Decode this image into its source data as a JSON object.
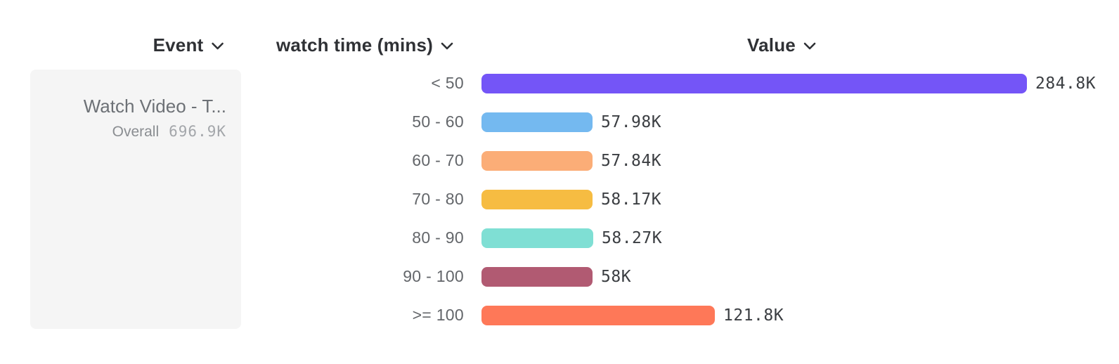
{
  "columns": [
    {
      "label": "Event"
    },
    {
      "label": "watch time (mins)"
    },
    {
      "label": "Value"
    }
  ],
  "event_card": {
    "title": "Watch Video - T...",
    "overall_label": "Overall",
    "overall_value": "696.9K"
  },
  "chart_data": {
    "type": "bar",
    "orientation": "horizontal",
    "title": "",
    "xlabel": "Value",
    "ylabel": "watch time (mins)",
    "grid": false,
    "legend": "none",
    "categories": [
      "< 50",
      "50 - 60",
      "60 - 70",
      "70 - 80",
      "80 - 90",
      "90 - 100",
      ">= 100"
    ],
    "values": [
      284800,
      57980,
      57840,
      58170,
      58270,
      58000,
      121800
    ],
    "value_labels": [
      "284.8K",
      "57.98K",
      "57.84K",
      "58.17K",
      "58.27K",
      "58K",
      "121.8K"
    ],
    "colors": [
      "#7455F7",
      "#74B9F0",
      "#FBAD77",
      "#F6BC42",
      "#7FDFD4",
      "#B15A72",
      "#FE7858"
    ],
    "overall_total": "696.9K",
    "event_name": "Watch Video - T..."
  },
  "theme": {
    "background": "#ffffff",
    "card_background": "#f5f5f5",
    "header_text": "#2f3135",
    "row_label_text": "#63666a",
    "value_text": "#3b3e42"
  }
}
